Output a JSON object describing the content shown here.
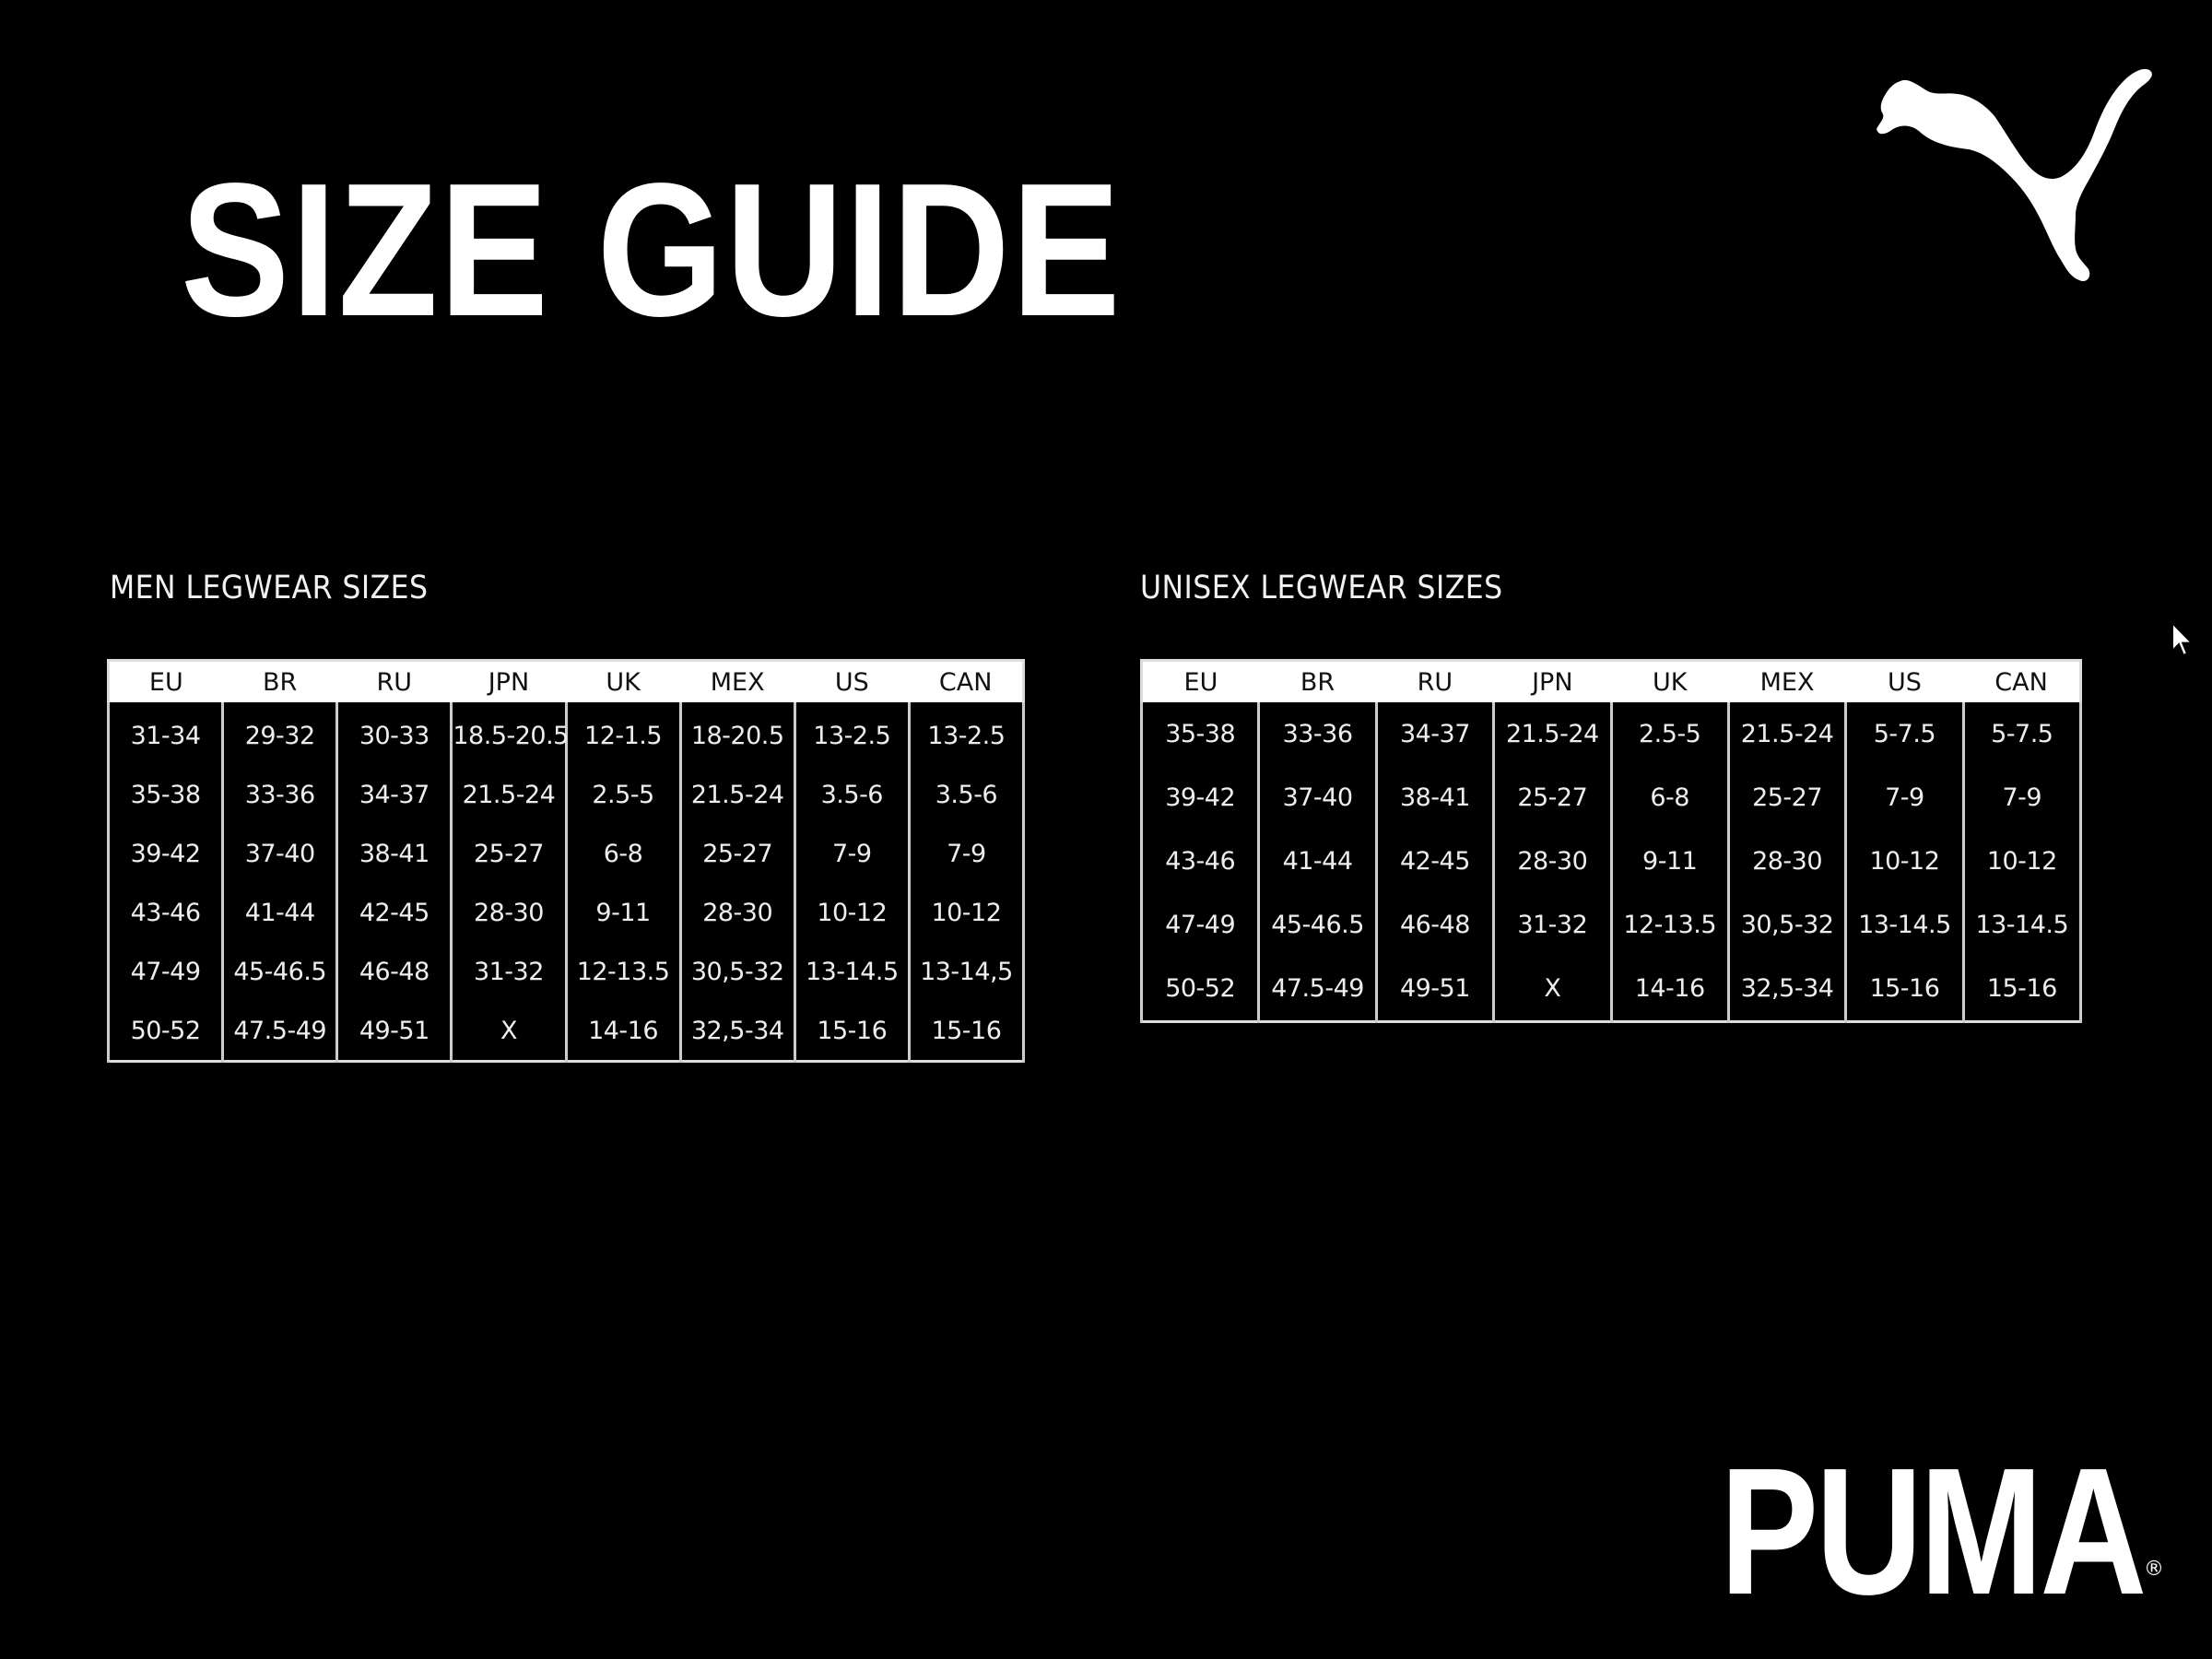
{
  "title": "SIZE GUIDE",
  "brand": {
    "wordmark": "PUMA",
    "registered": "®",
    "logo_icon": "puma-cat-icon"
  },
  "columns": [
    "EU",
    "BR",
    "RU",
    "JPN",
    "UK",
    "MEX",
    "US",
    "CAN"
  ],
  "men": {
    "label": "MEN LEGWEAR SIZES",
    "rows": [
      [
        "31-34",
        "29-32",
        "30-33",
        "18.5-20.5",
        "12-1.5",
        "18-20.5",
        "13-2.5",
        "13-2.5"
      ],
      [
        "35-38",
        "33-36",
        "34-37",
        "21.5-24",
        "2.5-5",
        "21.5-24",
        "3.5-6",
        "3.5-6"
      ],
      [
        "39-42",
        "37-40",
        "38-41",
        "25-27",
        "6-8",
        "25-27",
        "7-9",
        "7-9"
      ],
      [
        "43-46",
        "41-44",
        "42-45",
        "28-30",
        "9-11",
        "28-30",
        "10-12",
        "10-12"
      ],
      [
        "47-49",
        "45-46.5",
        "46-48",
        "31-32",
        "12-13.5",
        "30,5-32",
        "13-14.5",
        "13-14,5"
      ],
      [
        "50-52",
        "47.5-49",
        "49-51",
        "X",
        "14-16",
        "32,5-34",
        "15-16",
        "15-16"
      ]
    ]
  },
  "unisex": {
    "label": "UNISEX LEGWEAR SIZES",
    "rows": [
      [
        "35-38",
        "33-36",
        "34-37",
        "21.5-24",
        "2.5-5",
        "21.5-24",
        "5-7.5",
        "5-7.5"
      ],
      [
        "39-42",
        "37-40",
        "38-41",
        "25-27",
        "6-8",
        "25-27",
        "7-9",
        "7-9"
      ],
      [
        "43-46",
        "41-44",
        "42-45",
        "28-30",
        "9-11",
        "28-30",
        "10-12",
        "10-12"
      ],
      [
        "47-49",
        "45-46.5",
        "46-48",
        "31-32",
        "12-13.5",
        "30,5-32",
        "13-14.5",
        "13-14.5"
      ],
      [
        "50-52",
        "47.5-49",
        "49-51",
        "X",
        "14-16",
        "32,5-34",
        "15-16",
        "15-16"
      ]
    ]
  },
  "colors": {
    "background": "#000000",
    "foreground": "#ffffff",
    "header_bg": "#ffffff",
    "header_text": "#111111"
  }
}
